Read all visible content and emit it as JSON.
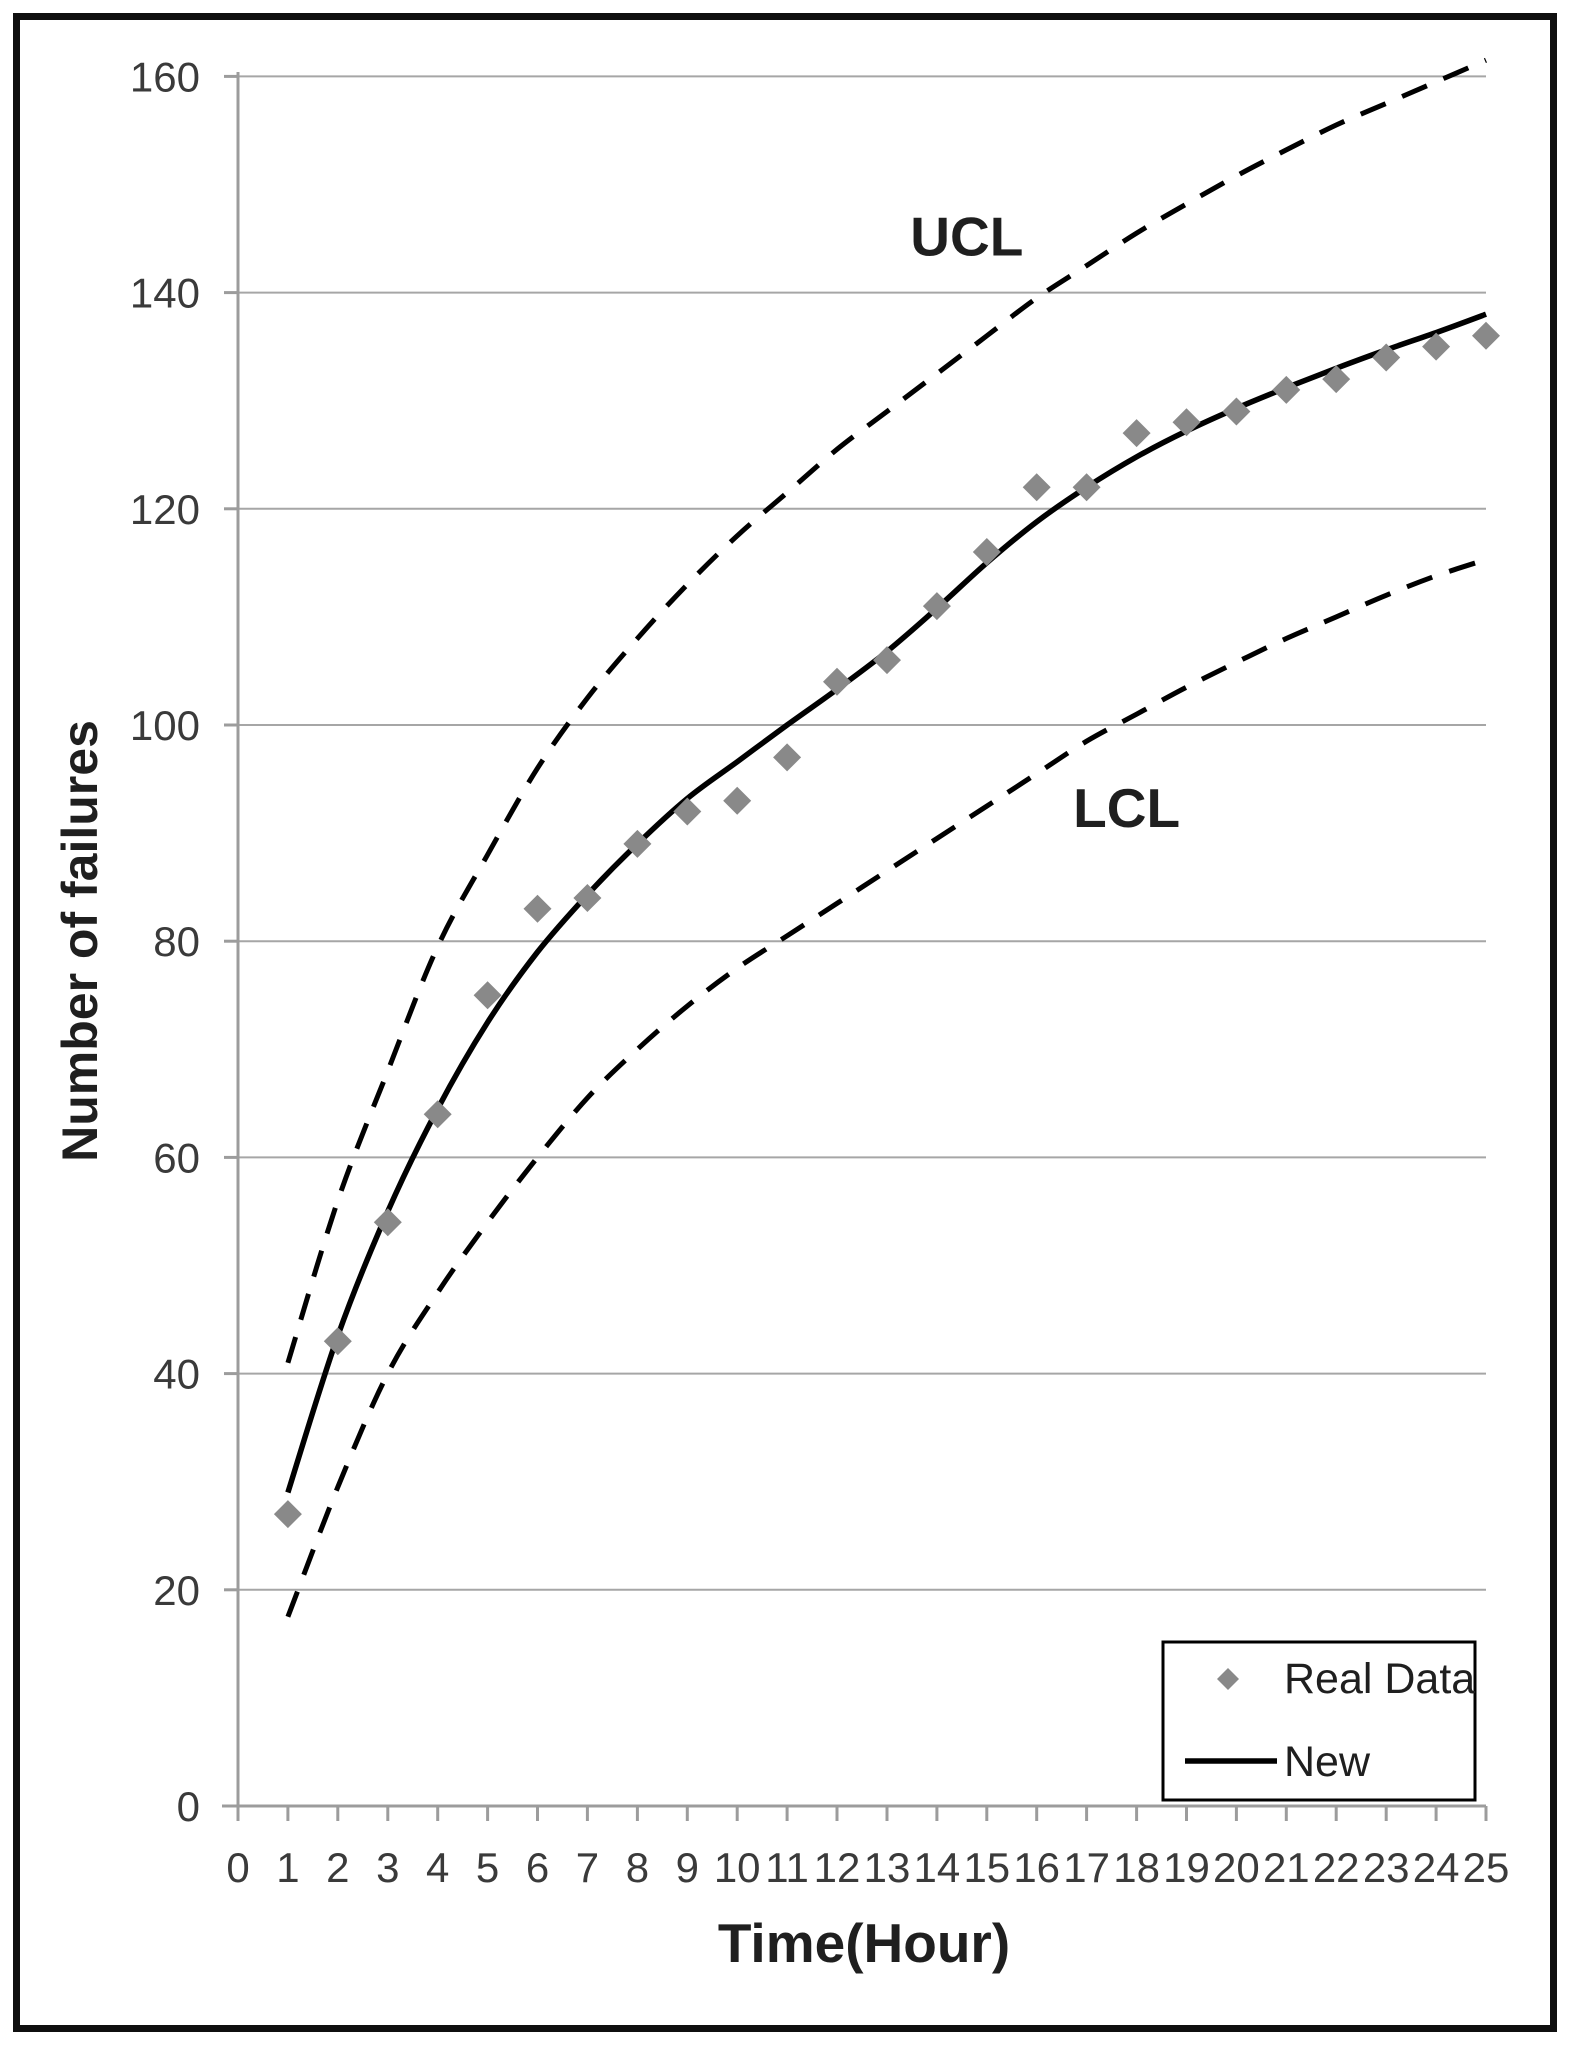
{
  "figure": {
    "background": "#ffffff",
    "frame_color": "#0f0f0f"
  },
  "colors": {
    "gridline": "#a6a6a6",
    "axis": "#9c9c9c",
    "tick_label": "#3a3a3a",
    "text": "#1f1f1f",
    "marker": "#898989",
    "line": "#000000"
  },
  "chart_data": {
    "type": "line",
    "title": "",
    "xlabel": "Time(Hour)",
    "ylabel": "Number of failures",
    "xlim": [
      0,
      25
    ],
    "ylim": [
      0,
      160
    ],
    "grid": "horizontal",
    "x_ticks": [
      0,
      1,
      2,
      3,
      4,
      5,
      6,
      7,
      8,
      9,
      10,
      11,
      12,
      13,
      14,
      15,
      16,
      17,
      18,
      19,
      20,
      21,
      22,
      23,
      24,
      25
    ],
    "y_ticks": [
      0,
      20,
      40,
      60,
      80,
      100,
      120,
      140,
      160
    ],
    "x": [
      1,
      2,
      3,
      4,
      5,
      6,
      7,
      8,
      9,
      10,
      11,
      12,
      13,
      14,
      15,
      16,
      17,
      18,
      19,
      20,
      21,
      22,
      23,
      24,
      25
    ],
    "series": [
      {
        "name": "Real Data",
        "type": "scatter",
        "marker": "diamond",
        "color": "#898989",
        "values": [
          27,
          43,
          54,
          64,
          75,
          83,
          84,
          89,
          92,
          93,
          97,
          104,
          106,
          111,
          116,
          122,
          122,
          127,
          128,
          129,
          131,
          132,
          134,
          135,
          136
        ]
      },
      {
        "name": "New",
        "type": "line",
        "line_style": "solid",
        "color": "#000000",
        "values": [
          29,
          43.5,
          55,
          64.5,
          72.5,
          79,
          84.3,
          89,
          93.2,
          96.6,
          100,
          103.3,
          106.8,
          110.8,
          115,
          118.8,
          122,
          124.8,
          127.2,
          129.3,
          131.2,
          133,
          134.7,
          136.3,
          138
        ]
      },
      {
        "name": "UCL",
        "type": "line",
        "line_style": "dashed",
        "color": "#000000",
        "values": [
          41,
          56,
          68,
          79.5,
          88,
          96,
          102.5,
          108,
          113,
          117.5,
          121.5,
          125.5,
          129,
          132.5,
          136,
          139.5,
          142.5,
          145.5,
          148.2,
          150.8,
          153.2,
          155.5,
          157.5,
          159.5,
          161.5
        ]
      },
      {
        "name": "LCL",
        "type": "line",
        "line_style": "dashed",
        "color": "#000000",
        "values": [
          17.5,
          29.5,
          40,
          47.5,
          54,
          60,
          65.5,
          70,
          74,
          77.5,
          80.5,
          83.5,
          86.5,
          89.5,
          92.5,
          95.5,
          98.5,
          101,
          103.5,
          105.8,
          108,
          110,
          112,
          113.8,
          115.3
        ]
      }
    ],
    "annotations": [
      {
        "text": "UCL",
        "x": 14.6,
        "y": 145.2
      },
      {
        "text": "LCL",
        "x": 17.8,
        "y": 92.3
      }
    ],
    "legend": {
      "position": "bottom-right",
      "entries": [
        {
          "label": "Real Data",
          "marker": "diamond"
        },
        {
          "label": "New",
          "marker": "line"
        }
      ]
    }
  }
}
